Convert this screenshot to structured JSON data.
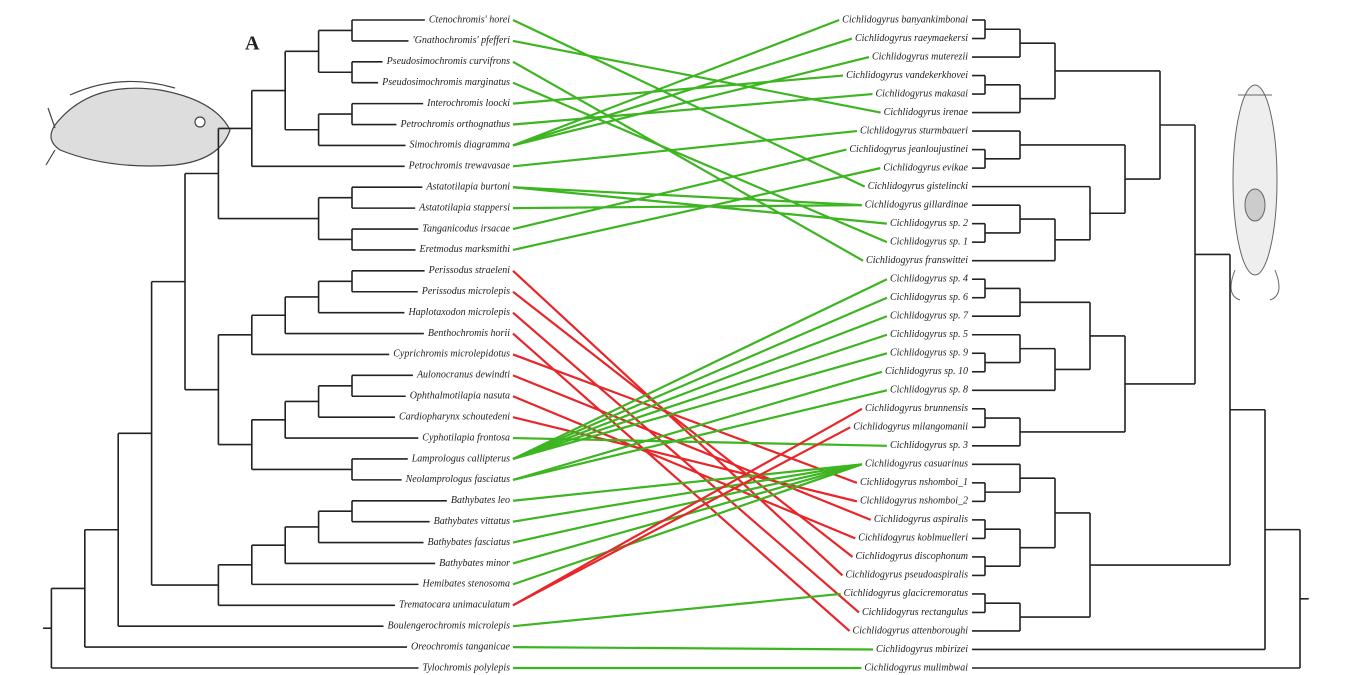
{
  "panel_label": "A",
  "hosts": [
    "Ctenochromis' horei",
    "'Gnathochromis' pfefferi",
    "Pseudosimochromis curvifrons",
    "Pseudosimochromis marginatus",
    "Interochromis loocki",
    "Petrochromis orthognathus",
    "Simochromis diagramma",
    "Petrochromis trewavasae",
    "Astatotilapia burtoni",
    "Astatotilapia stappersi",
    "Tanganicodus irsacae",
    "Eretmodus marksmithi",
    "Perissodus straeleni",
    "Perissodus microlepis",
    "Haplotaxodon microlepis",
    "Benthochromis horii",
    "Cyprichromis microlepidotus",
    "Aulonocranus dewindti",
    "Ophthalmotilapia nasuta",
    "Cardiopharynx schoutedeni",
    "Cyphotilapia frontosa",
    "Lamprologus callipterus",
    "Neolamprologus fasciatus",
    "Bathybates leo",
    "Bathybates vittatus",
    "Bathybates fasciatus",
    "Bathybates minor",
    "Hemibates stenosoma",
    "Trematocara unimaculatum",
    "Boulengerochromis microlepis",
    "Oreochromis tanganicae",
    "Tylochromis polylepis"
  ],
  "parasites": [
    "Cichlidogyrus banyankimbonai",
    "Cichlidogyrus raeymaekersi",
    "Cichlidogyrus muterezii",
    "Cichlidogyrus vandekerkhovei",
    "Cichlidogyrus makasai",
    "Cichlidogyrus irenae",
    "Cichlidogyrus sturmbaueri",
    "Cichlidogyrus jeanloujustinei",
    "Cichlidogyrus evikae",
    "Cichlidogyrus gistelincki",
    "Cichlidogyrus gillardinae",
    "Cichlidogyrus sp. 2",
    "Cichlidogyrus sp. 1",
    "Cichlidogyrus franswittei",
    "Cichlidogyrus sp. 4",
    "Cichlidogyrus sp. 6",
    "Cichlidogyrus sp. 7",
    "Cichlidogyrus sp. 5",
    "Cichlidogyrus sp. 9",
    "Cichlidogyrus sp. 10",
    "Cichlidogyrus sp. 8",
    "Cichlidogyrus brunnensis",
    "Cichlidogyrus milangomanii",
    "Cichlidogyrus sp. 3",
    "Cichlidogyrus casuarinus",
    "Cichlidogyrus nshomboi_1",
    "Cichlidogyrus nshomboi_2",
    "Cichlidogyrus aspiralis",
    "Cichlidogyrus koblmuelleri",
    "Cichlidogyrus discophonum",
    "Cichlidogyrus pseudoaspiralis",
    "Cichlidogyrus glacicremoratus",
    "Cichlidogyrus rectangulus",
    "Cichlidogyrus attenboroughi",
    "Cichlidogyrus mbirizei",
    "Cichlidogyrus mulimbwai"
  ],
  "links": [
    {
      "host": 0,
      "parasite": 9,
      "color": "#3cb521"
    },
    {
      "host": 1,
      "parasite": 5,
      "color": "#3cb521"
    },
    {
      "host": 2,
      "parasite": 13,
      "color": "#3cb521"
    },
    {
      "host": 3,
      "parasite": 12,
      "color": "#3cb521"
    },
    {
      "host": 4,
      "parasite": 3,
      "color": "#3cb521"
    },
    {
      "host": 5,
      "parasite": 4,
      "color": "#3cb521"
    },
    {
      "host": 6,
      "parasite": 0,
      "color": "#3cb521"
    },
    {
      "host": 6,
      "parasite": 1,
      "color": "#3cb521"
    },
    {
      "host": 6,
      "parasite": 2,
      "color": "#3cb521"
    },
    {
      "host": 7,
      "parasite": 6,
      "color": "#3cb521"
    },
    {
      "host": 8,
      "parasite": 10,
      "color": "#3cb521"
    },
    {
      "host": 8,
      "parasite": 11,
      "color": "#3cb521"
    },
    {
      "host": 9,
      "parasite": 10,
      "color": "#3cb521"
    },
    {
      "host": 10,
      "parasite": 7,
      "color": "#3cb521"
    },
    {
      "host": 11,
      "parasite": 8,
      "color": "#3cb521"
    },
    {
      "host": 12,
      "parasite": 30,
      "color": "#e8262a"
    },
    {
      "host": 13,
      "parasite": 29,
      "color": "#e8262a"
    },
    {
      "host": 14,
      "parasite": 32,
      "color": "#e8262a"
    },
    {
      "host": 15,
      "parasite": 33,
      "color": "#e8262a"
    },
    {
      "host": 16,
      "parasite": 25,
      "color": "#e8262a"
    },
    {
      "host": 17,
      "parasite": 27,
      "color": "#e8262a"
    },
    {
      "host": 18,
      "parasite": 28,
      "color": "#e8262a"
    },
    {
      "host": 19,
      "parasite": 26,
      "color": "#e8262a"
    },
    {
      "host": 20,
      "parasite": 23,
      "color": "#3cb521"
    },
    {
      "host": 21,
      "parasite": 14,
      "color": "#3cb521"
    },
    {
      "host": 21,
      "parasite": 15,
      "color": "#3cb521"
    },
    {
      "host": 21,
      "parasite": 16,
      "color": "#3cb521"
    },
    {
      "host": 21,
      "parasite": 17,
      "color": "#3cb521"
    },
    {
      "host": 21,
      "parasite": 18,
      "color": "#3cb521"
    },
    {
      "host": 22,
      "parasite": 19,
      "color": "#3cb521"
    },
    {
      "host": 22,
      "parasite": 20,
      "color": "#3cb521"
    },
    {
      "host": 23,
      "parasite": 24,
      "color": "#3cb521"
    },
    {
      "host": 24,
      "parasite": 24,
      "color": "#3cb521"
    },
    {
      "host": 25,
      "parasite": 24,
      "color": "#3cb521"
    },
    {
      "host": 26,
      "parasite": 24,
      "color": "#3cb521"
    },
    {
      "host": 27,
      "parasite": 24,
      "color": "#3cb521"
    },
    {
      "host": 28,
      "parasite": 21,
      "color": "#e8262a"
    },
    {
      "host": 28,
      "parasite": 22,
      "color": "#e8262a"
    },
    {
      "host": 29,
      "parasite": 31,
      "color": "#3cb521"
    },
    {
      "host": 30,
      "parasite": 34,
      "color": "#3cb521"
    },
    {
      "host": 31,
      "parasite": 35,
      "color": "#3cb521"
    }
  ]
}
